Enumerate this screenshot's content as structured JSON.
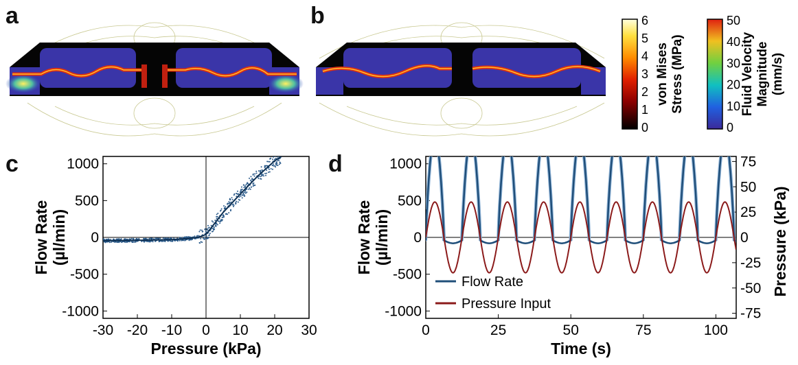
{
  "panels": {
    "a": "a",
    "b": "b",
    "c": "c",
    "d": "d"
  },
  "colorbars": [
    {
      "title_lines": [
        "von Mises",
        "Stress (MPa)"
      ],
      "ticks": [
        "6",
        "5",
        "4",
        "3",
        "2",
        "1",
        "0"
      ]
    },
    {
      "title_lines": [
        "Fluid Velocity",
        "Magnitude",
        "(mm/s)"
      ],
      "ticks": [
        "50",
        "40",
        "30",
        "20",
        "10",
        "0"
      ]
    }
  ],
  "chart_data": [
    {
      "panel": "c",
      "type": "scatter",
      "xlabel": "Pressure (kPa)",
      "ylabel_lines": [
        "Flow Rate",
        "(µl/min)"
      ],
      "xlim": [
        -30,
        30
      ],
      "ylim": [
        -1100,
        1100
      ],
      "xticks": [
        -30,
        -20,
        -10,
        0,
        10,
        20,
        30
      ],
      "yticks": [
        1000,
        500,
        0,
        -500,
        -1000
      ],
      "fit": {
        "x": [
          -30,
          -20,
          -10,
          -5,
          -2,
          0,
          2,
          5,
          10,
          15,
          20,
          22
        ],
        "y": [
          -45,
          -40,
          -30,
          -15,
          5,
          40,
          160,
          340,
          590,
          830,
          1040,
          1100
        ]
      },
      "grid": false,
      "zero_lines": true
    },
    {
      "panel": "d",
      "type": "line",
      "xlabel": "Time (s)",
      "ylabel_lines": [
        "Flow Rate",
        "(µl/min)"
      ],
      "y2label": "Pressure (kPa)",
      "xlim": [
        0,
        107
      ],
      "ylim": [
        -1100,
        1100
      ],
      "y2lim": [
        -80,
        80
      ],
      "xticks": [
        0,
        25,
        50,
        75,
        100
      ],
      "yticks": [
        1000,
        500,
        0,
        -500,
        -1000
      ],
      "y2ticks": [
        75,
        50,
        25,
        0,
        -25,
        -50,
        -75
      ],
      "period_s": 12.5,
      "series": [
        {
          "name": "Flow Rate",
          "color": "#1f4e79",
          "peak": 1100,
          "trough": -40
        },
        {
          "name": "Pressure Input",
          "color": "#8b1a1a",
          "amplitude": 35
        }
      ],
      "legend_position": "bottom-left"
    }
  ]
}
